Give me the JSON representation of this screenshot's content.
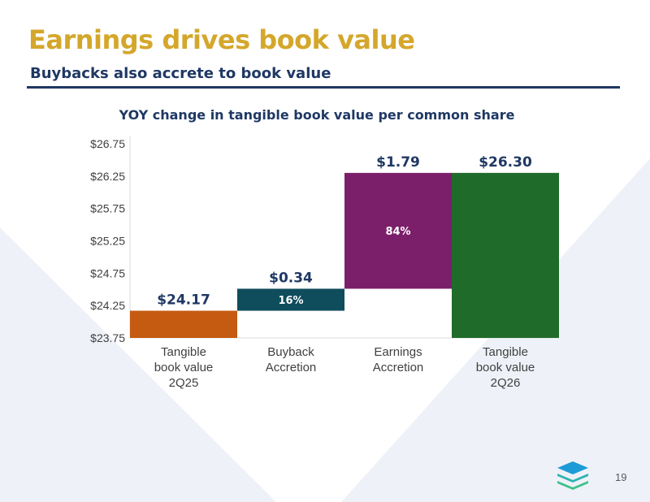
{
  "slide": {
    "title": "Earnings drives book value",
    "subtitle": "Buybacks also accrete to book value",
    "page_number": "19",
    "colors": {
      "title": "#d4a72c",
      "subtitle": "#1f3864",
      "rule": "#1f3864",
      "background_shape": "#eef2f8"
    },
    "logo_icon": "stacked-layers-logo-icon"
  },
  "chart_data": {
    "type": "bar",
    "subtype": "waterfall",
    "title": "YOY change in tangible book value per common share",
    "categories": [
      [
        "Tangible",
        "book value",
        "2Q25"
      ],
      [
        "Buyback",
        "Accretion"
      ],
      [
        "Earnings",
        "Accretion"
      ],
      [
        "Tangible",
        "book value",
        "2Q26"
      ]
    ],
    "bars": [
      {
        "base": 23.75,
        "top": 24.17,
        "value_label": "$24.17",
        "share_label": "",
        "color": "#c55a11"
      },
      {
        "base": 24.17,
        "top": 24.51,
        "value_label": "$0.34",
        "share_label": "16%",
        "color": "#0f4c5c"
      },
      {
        "base": 24.51,
        "top": 26.3,
        "value_label": "$1.79",
        "share_label": "84%",
        "color": "#7b1f6a"
      },
      {
        "base": 23.75,
        "top": 26.3,
        "value_label": "$26.30",
        "share_label": "",
        "color": "#1f6b2a"
      }
    ],
    "yticks": [
      "$23.75",
      "$24.25",
      "$24.75",
      "$25.25",
      "$25.75",
      "$26.25",
      "$26.75"
    ],
    "ytick_values": [
      23.75,
      24.25,
      24.75,
      25.25,
      25.75,
      26.25,
      26.75
    ],
    "ylim": [
      23.75,
      26.75
    ],
    "grid": false,
    "legend": "none"
  }
}
